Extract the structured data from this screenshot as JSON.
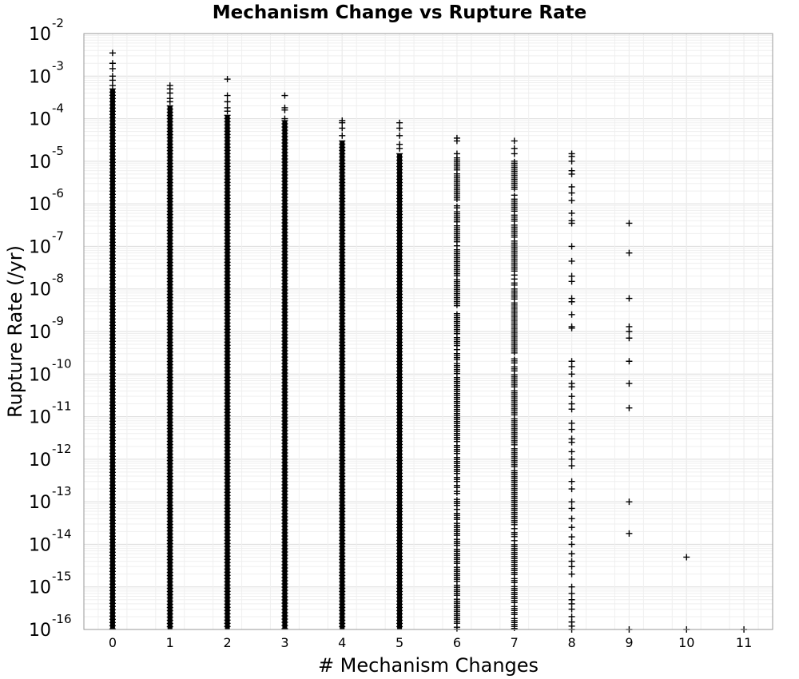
{
  "chart_data": {
    "type": "scatter",
    "title": "Mechanism Change vs Rupture Rate",
    "xlabel": "# Mechanism Changes",
    "ylabel": "Rupture Rate (/yr)",
    "xlim": [
      -0.5,
      11.5
    ],
    "ylim": [
      1e-16,
      0.01
    ],
    "yscale": "log",
    "grid": true,
    "marker": "plus",
    "color": "#000000",
    "x_ticks": [
      "0",
      "1",
      "2",
      "3",
      "4",
      "5",
      "6",
      "7",
      "8",
      "9",
      "10",
      "11"
    ],
    "y_ticks": [
      {
        "base": "10",
        "exp": "-2"
      },
      {
        "base": "10",
        "exp": "-3"
      },
      {
        "base": "10",
        "exp": "-4"
      },
      {
        "base": "10",
        "exp": "-5"
      },
      {
        "base": "10",
        "exp": "-6"
      },
      {
        "base": "10",
        "exp": "-7"
      },
      {
        "base": "10",
        "exp": "-8"
      },
      {
        "base": "10",
        "exp": "-9"
      },
      {
        "base": "10",
        "exp": "-10"
      },
      {
        "base": "10",
        "exp": "-11"
      },
      {
        "base": "10",
        "exp": "-12"
      },
      {
        "base": "10",
        "exp": "-13"
      },
      {
        "base": "10",
        "exp": "-14"
      },
      {
        "base": "10",
        "exp": "-15"
      },
      {
        "base": "10",
        "exp": "-16"
      }
    ],
    "columns": [
      {
        "x": 0,
        "dense_range": [
          1e-16,
          0.0005
        ],
        "sparse_points": [
          0.0035,
          0.002,
          0.0015,
          0.001,
          0.0008,
          0.0006
        ]
      },
      {
        "x": 1,
        "dense_range": [
          1e-16,
          0.0002
        ],
        "sparse_points": [
          0.0006,
          0.0005,
          0.0004,
          0.0003,
          0.00025
        ]
      },
      {
        "x": 2,
        "dense_range": [
          1e-16,
          0.00012
        ],
        "sparse_points": [
          0.00085,
          0.00035,
          0.00025,
          0.00018,
          0.00015
        ]
      },
      {
        "x": 3,
        "dense_range": [
          1e-16,
          9e-05
        ],
        "sparse_points": [
          0.00035,
          0.00018,
          0.00016,
          0.0001
        ]
      },
      {
        "x": 4,
        "dense_range": [
          1e-16,
          3e-05
        ],
        "sparse_points": [
          9e-05,
          8e-05,
          6e-05,
          4e-05
        ]
      },
      {
        "x": 5,
        "dense_range": [
          1e-16,
          1.5e-05
        ],
        "sparse_points": [
          8e-05,
          6e-05,
          4e-05,
          2.5e-05,
          2e-05
        ]
      },
      {
        "x": 6,
        "dense_range": [
          1e-16,
          1.2e-05
        ],
        "sparse_points": [
          3.5e-05,
          3e-05,
          1.5e-05
        ]
      },
      {
        "x": 7,
        "dense_range": [
          1e-16,
          1e-05
        ],
        "sparse_points": [
          3e-05,
          2e-05,
          1.5e-05
        ]
      },
      {
        "x": 8,
        "dense_range": null,
        "sparse_points": [
          1.5e-05,
          1.3e-05,
          1e-05,
          6e-06,
          5e-06,
          2.5e-06,
          1.8e-06,
          1.2e-06,
          6e-07,
          4e-07,
          3.5e-07,
          1e-07,
          4.5e-08,
          2e-08,
          1.5e-08,
          6e-09,
          5e-09,
          2.5e-09,
          1.3e-09,
          1.2e-09,
          2e-10,
          1.5e-10,
          1e-10,
          6e-11,
          5e-11,
          3e-11,
          2e-11,
          1.5e-11,
          7e-12,
          5e-12,
          3e-12,
          2.5e-12,
          1.5e-12,
          1e-12,
          7e-13,
          3e-13,
          2e-13,
          1e-13,
          7e-14,
          4e-14,
          2.5e-14,
          1.5e-14,
          1e-14,
          6e-15,
          4e-15,
          3e-15,
          2e-15,
          1e-15,
          7e-16,
          5e-16,
          4e-16,
          3e-16,
          2e-16,
          1.5e-16,
          1.2e-16,
          1e-16
        ]
      },
      {
        "x": 9,
        "dense_range": null,
        "sparse_points": [
          3.5e-07,
          7e-08,
          6e-09,
          1.3e-09,
          1e-09,
          7e-10,
          2e-10,
          6e-11,
          1.6e-11,
          1e-13,
          1.8e-14,
          1e-16
        ]
      },
      {
        "x": 10,
        "dense_range": null,
        "sparse_points": [
          5e-15,
          1e-16
        ]
      },
      {
        "x": 11,
        "dense_range": null,
        "sparse_points": [
          1e-16
        ]
      }
    ]
  }
}
